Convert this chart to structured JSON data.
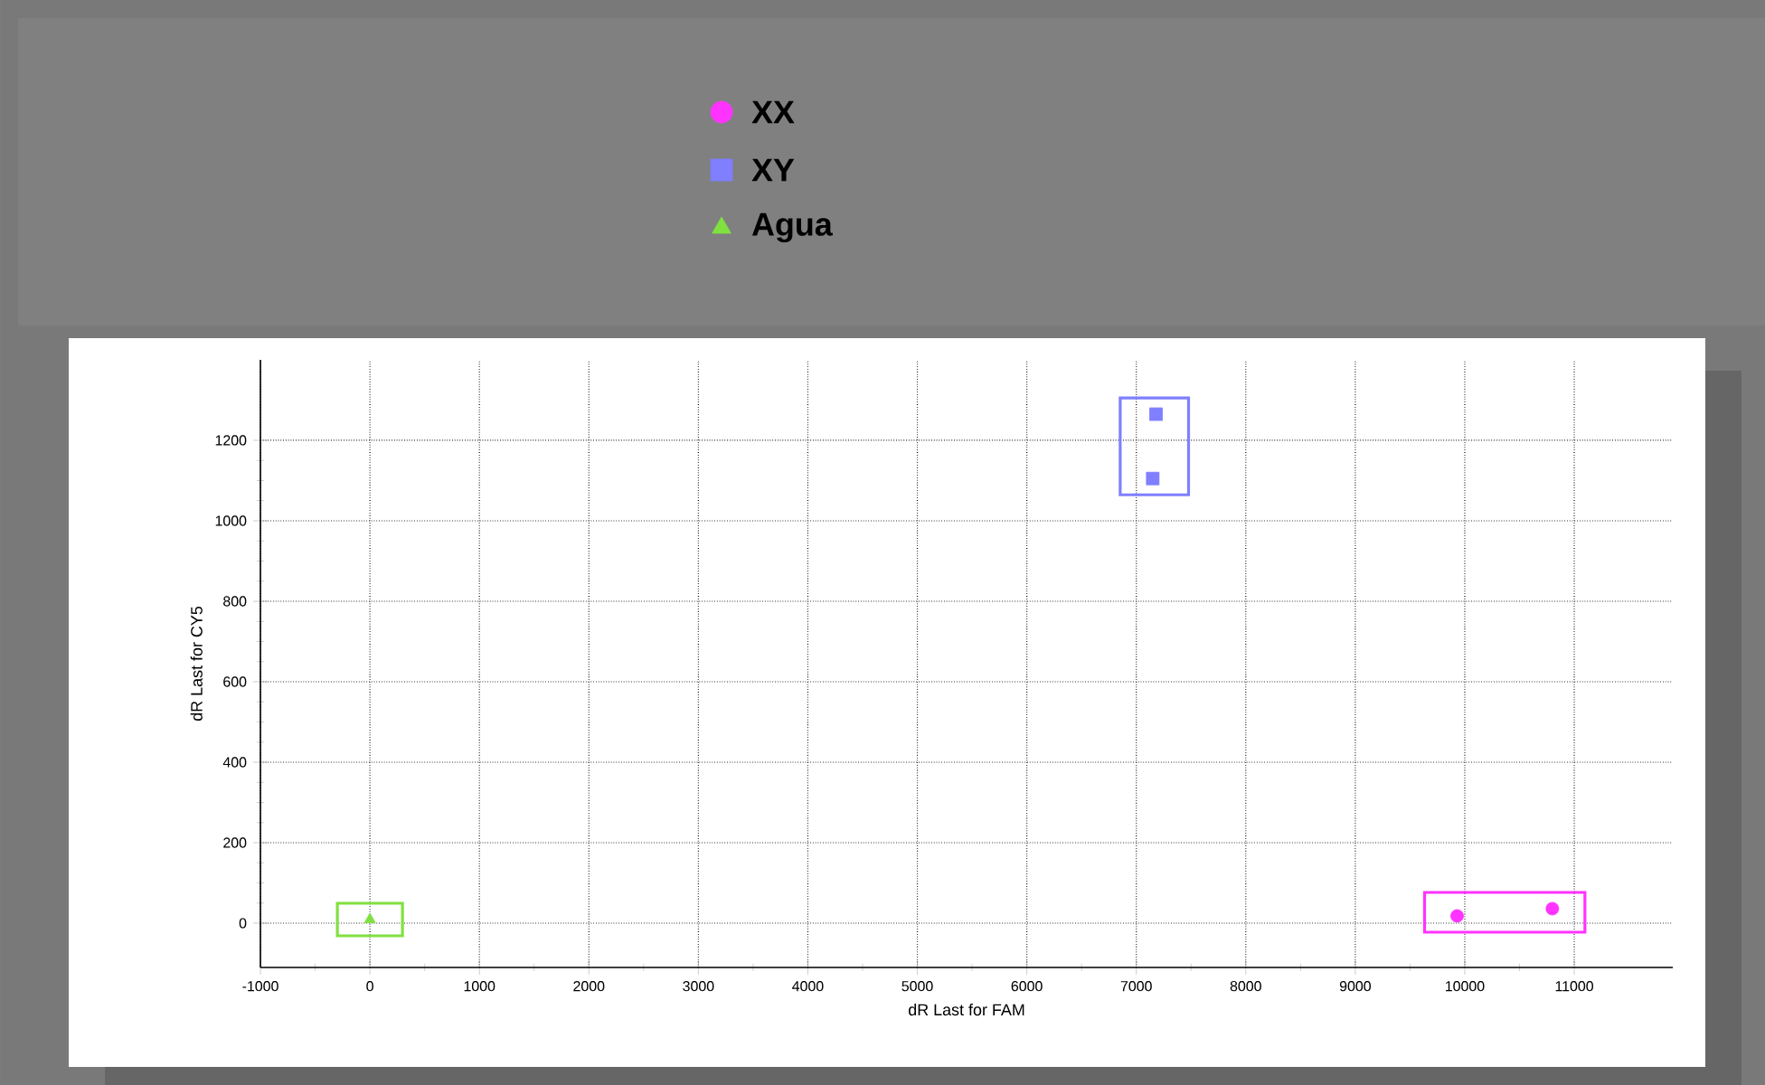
{
  "chart_data": {
    "type": "scatter",
    "xlabel": "dR Last for FAM",
    "ylabel": "dR Last for CY5",
    "series": [
      {
        "name": "XX",
        "color": "#ff33ff",
        "marker": "circle",
        "x": [
          9930,
          10800
        ],
        "values": [
          18,
          36
        ]
      },
      {
        "name": "XY",
        "color": "#7f7fff",
        "marker": "square",
        "x": [
          7180,
          7150
        ],
        "values": [
          1265,
          1105
        ]
      },
      {
        "name": "Agua",
        "color": "#80e040",
        "marker": "triangle",
        "x": [
          0
        ],
        "values": [
          9
        ]
      }
    ],
    "xlim": [
      -1000,
      11900
    ],
    "ylim": [
      -110,
      1400
    ],
    "xticks": [
      -1000,
      0,
      1000,
      2000,
      3000,
      4000,
      5000,
      6000,
      7000,
      8000,
      9000,
      10000,
      11000
    ],
    "yticks": [
      0,
      200,
      400,
      600,
      800,
      1000,
      1200
    ],
    "grid": true,
    "legend": "top"
  }
}
